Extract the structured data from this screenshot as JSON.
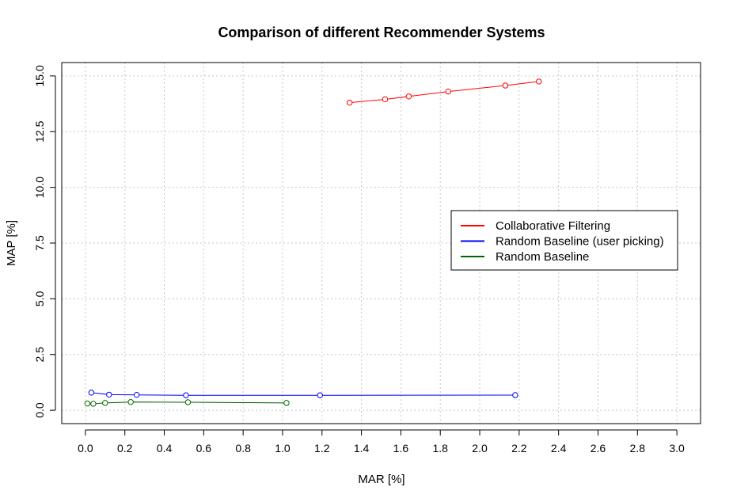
{
  "chart_data": {
    "type": "line",
    "title": "Comparison of different Recommender Systems",
    "xlabel": "MAR [%]",
    "ylabel": "MAP [%]",
    "xlim": [
      -0.12,
      3.12
    ],
    "ylim": [
      -0.6,
      15.6
    ],
    "x_ticks": [
      "0.0",
      "0.2",
      "0.4",
      "0.6",
      "0.8",
      "1.0",
      "1.2",
      "1.4",
      "1.6",
      "1.8",
      "2.0",
      "2.2",
      "2.4",
      "2.6",
      "2.8",
      "3.0"
    ],
    "y_ticks": [
      "0.0",
      "2.5",
      "5.0",
      "7.5",
      "10.0",
      "12.5",
      "15.0"
    ],
    "grid": true,
    "legend_position": "right",
    "series": [
      {
        "name": "Collaborative Filtering",
        "color": "#ff0000",
        "x": [
          1.34,
          1.52,
          1.64,
          1.84,
          2.13,
          2.3
        ],
        "y": [
          13.8,
          13.95,
          14.08,
          14.3,
          14.57,
          14.75
        ]
      },
      {
        "name": "Random Baseline (user picking)",
        "color": "#0000ff",
        "x": [
          0.03,
          0.12,
          0.26,
          0.51,
          1.19,
          2.18
        ],
        "y": [
          0.79,
          0.7,
          0.69,
          0.67,
          0.67,
          0.68
        ]
      },
      {
        "name": "Random Baseline",
        "color": "#006400",
        "x": [
          0.01,
          0.04,
          0.1,
          0.23,
          0.52,
          1.02
        ],
        "y": [
          0.3,
          0.29,
          0.33,
          0.37,
          0.36,
          0.33
        ]
      }
    ]
  }
}
